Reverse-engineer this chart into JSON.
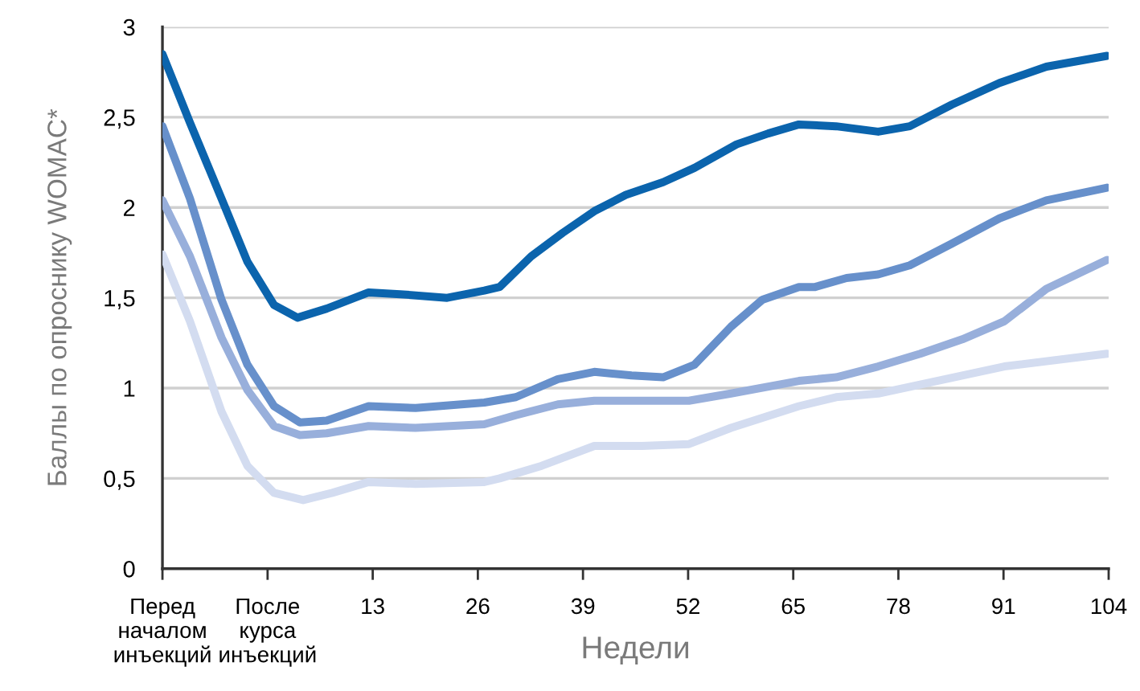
{
  "chart_data": {
    "type": "line",
    "xlabel": "Недели",
    "ylabel": "Баллы по опроснику WOMAC*",
    "xlim": [
      -13,
      104
    ],
    "ylim": [
      0,
      3
    ],
    "xticks": [
      {
        "value": -13,
        "label": "Перед\nначалом\nинъекций"
      },
      {
        "value": 0,
        "label": "После\nкурса\nинъекций"
      },
      13,
      26,
      39,
      52,
      65,
      78,
      91,
      104
    ],
    "yticks": [
      0,
      {
        "value": 0.5,
        "label": "0,5"
      },
      1,
      {
        "value": 1.5,
        "label": "1,5"
      },
      2,
      {
        "value": 2.5,
        "label": "2,5"
      },
      3
    ],
    "grid": "y",
    "marker": "none",
    "line_style": "solid",
    "series": [
      {
        "color": "#0b64ad",
        "x": [
          -13,
          -9.6,
          -5.7,
          -2.5,
          0.8,
          3.7,
          7.3,
          12.5,
          16.4,
          22.2,
          26.8,
          28.7,
          32.6,
          36.5,
          40.4,
          44.3,
          48.9,
          52.8,
          58,
          61.9,
          65.7,
          70.3,
          75.5,
          79.4,
          84.6,
          90.5,
          96.3,
          103.8
        ],
        "values": [
          2.85,
          2.47,
          2.05,
          1.7,
          1.46,
          1.39,
          1.44,
          1.53,
          1.52,
          1.5,
          1.54,
          1.56,
          1.73,
          1.86,
          1.98,
          2.07,
          2.14,
          2.22,
          2.35,
          2.41,
          2.46,
          2.45,
          2.42,
          2.45,
          2.57,
          2.69,
          2.78,
          2.84
        ]
      },
      {
        "color": "#6790cb",
        "x": [
          -13,
          -9.6,
          -5.7,
          -2.5,
          0.8,
          4,
          7.3,
          12.5,
          18.3,
          26.8,
          30.7,
          35.9,
          40.4,
          45,
          48.9,
          52.8,
          57.3,
          61.2,
          65.7,
          67.7,
          71.6,
          75.5,
          79.4,
          84.6,
          90.5,
          96.3,
          103.8
        ],
        "values": [
          2.45,
          2.05,
          1.49,
          1.13,
          0.9,
          0.81,
          0.82,
          0.9,
          0.89,
          0.92,
          0.95,
          1.05,
          1.09,
          1.07,
          1.06,
          1.13,
          1.34,
          1.49,
          1.56,
          1.56,
          1.61,
          1.63,
          1.68,
          1.8,
          1.94,
          2.04,
          2.11
        ]
      },
      {
        "color": "#98afdb",
        "x": [
          -13,
          -9.6,
          -5.7,
          -2.5,
          0.8,
          4,
          7.3,
          12.5,
          18.3,
          26.8,
          30.7,
          35.9,
          40.4,
          46.3,
          52.1,
          57.3,
          65.7,
          70.3,
          75.5,
          80.7,
          85.9,
          91.1,
          96.3,
          103.8
        ],
        "values": [
          2.04,
          1.73,
          1.28,
          0.99,
          0.79,
          0.74,
          0.75,
          0.79,
          0.78,
          0.8,
          0.85,
          0.91,
          0.93,
          0.93,
          0.93,
          0.97,
          1.04,
          1.06,
          1.12,
          1.19,
          1.27,
          1.37,
          1.55,
          1.71
        ]
      },
      {
        "color": "#d3dcf0",
        "x": [
          -13,
          -9.6,
          -5.7,
          -2.5,
          0.8,
          4.4,
          8,
          12.5,
          18.3,
          26.8,
          28.7,
          33.9,
          40.4,
          46.3,
          52.1,
          57.3,
          65.7,
          70.3,
          75.5,
          80.7,
          85.9,
          91.1,
          103.8
        ],
        "values": [
          1.74,
          1.37,
          0.87,
          0.57,
          0.42,
          0.38,
          0.42,
          0.48,
          0.47,
          0.48,
          0.5,
          0.57,
          0.68,
          0.68,
          0.69,
          0.78,
          0.9,
          0.95,
          0.97,
          1.02,
          1.07,
          1.12,
          1.19
        ]
      }
    ]
  }
}
